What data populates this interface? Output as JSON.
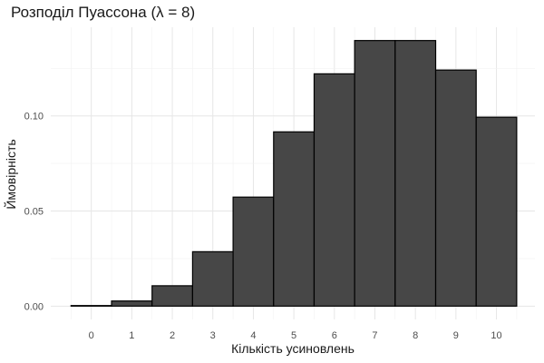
{
  "chart_data": {
    "type": "bar",
    "title": "Розподіл Пуассона (λ = 8)",
    "xlabel": "Кількість усиновлень",
    "ylabel": "Ймовірність",
    "categories": [
      "0",
      "1",
      "2",
      "3",
      "4",
      "5",
      "6",
      "7",
      "8",
      "9",
      "10"
    ],
    "x": [
      0,
      1,
      2,
      3,
      4,
      5,
      6,
      7,
      8,
      9,
      10
    ],
    "values": [
      0.0003,
      0.0027,
      0.0107,
      0.0286,
      0.0573,
      0.0916,
      0.1221,
      0.1396,
      0.1396,
      0.1241,
      0.0993
    ],
    "y_ticks": [
      0.0,
      0.05,
      0.1
    ],
    "y_tick_labels": [
      "0.00",
      "0.05",
      "0.10"
    ],
    "xlim": [
      -0.5,
      10.5
    ],
    "ylim": [
      0,
      0.1396
    ],
    "grid": true,
    "legend": "none",
    "colors": {
      "bar_fill": "#474747",
      "bar_stroke": "#000000",
      "grid": "#ebebeb"
    }
  }
}
